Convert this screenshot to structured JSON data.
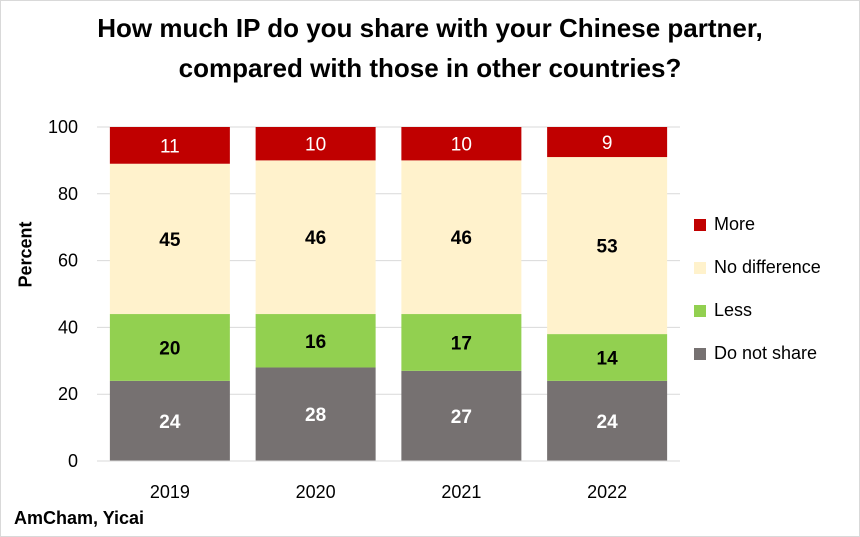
{
  "chart_data": {
    "type": "bar",
    "stacked": true,
    "title": "How much IP do you share with your Chinese partner, compared with those in other countries?",
    "ylabel": "Percent",
    "xlabel": "",
    "ylim": [
      0,
      100
    ],
    "yticks": [
      0,
      20,
      40,
      60,
      80,
      100
    ],
    "grid": true,
    "legend_position": "right",
    "categories": [
      "2019",
      "2020",
      "2021",
      "2022"
    ],
    "series": [
      {
        "name": "Do not share",
        "color": "#767171",
        "label_color": "#ffffff",
        "label_bold": true,
        "values": [
          24,
          28,
          27,
          24
        ]
      },
      {
        "name": "Less",
        "color": "#92d050",
        "label_color": "#000000",
        "label_bold": true,
        "values": [
          20,
          16,
          17,
          14
        ]
      },
      {
        "name": "No difference",
        "color": "#fff2cc",
        "label_color": "#000000",
        "label_bold": true,
        "values": [
          45,
          46,
          46,
          53
        ]
      },
      {
        "name": "More",
        "color": "#c00000",
        "label_color": "#ffffff",
        "label_bold": false,
        "values": [
          11,
          10,
          10,
          9
        ]
      }
    ]
  },
  "legend_order": [
    "More",
    "No difference",
    "Less",
    "Do not share"
  ],
  "source": "AmCham, Yicai"
}
